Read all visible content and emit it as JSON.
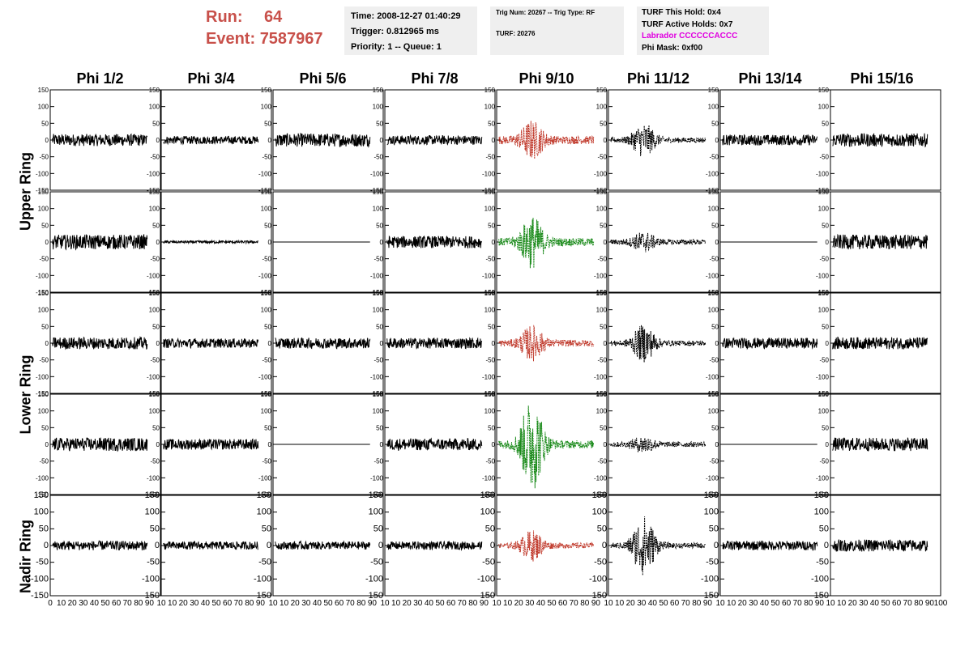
{
  "header": {
    "run_label": "Run:",
    "run_value": "64",
    "event_label": "Event:",
    "event_value": "7587967"
  },
  "info": {
    "time": "Time: 2008-12-27 01:40:29",
    "trigger": "Trigger: 0.812965 ms",
    "priority": "Priority: 1 -- Queue: 1",
    "trig_num": "Trig Num: 20267 -- Trig Type: RF",
    "turf": "TURF: 20276",
    "turf_hold": "TURF This Hold: 0x4",
    "turf_active": "TURF Active Holds: 0x7",
    "labrador": "Labrador CCCCCCACCC",
    "phi_mask": "Phi Mask: 0xf00"
  },
  "columns": [
    "Phi 1/2",
    "Phi 3/4",
    "Phi 5/6",
    "Phi 7/8",
    "Phi 9/10",
    "Phi 11/12",
    "Phi 13/14",
    "Phi 15/16"
  ],
  "rings": [
    "Upper Ring",
    "Lower Ring",
    "Nadir Ring"
  ],
  "colors": {
    "header_red": "#c8504a",
    "labrador_magenta": "#e000e0",
    "trace_black": "#000000",
    "trace_red": "#c0392b",
    "trace_green": "#1a8a1a",
    "info_bg": "#efefef"
  },
  "chart_data": {
    "type": "line",
    "title": "",
    "xlabel": "",
    "ylabel": "",
    "xlim": [
      0,
      100
    ],
    "ylim": [
      -150,
      150
    ],
    "y_ticks": [
      -150,
      -100,
      -50,
      0,
      50,
      100,
      150
    ],
    "x_ticks_bottom": [
      "0",
      "10",
      "20",
      "30",
      "40",
      "50",
      "60",
      "70",
      "80",
      "90",
      "10",
      "10",
      "20",
      "30",
      "40",
      "50",
      "60",
      "70",
      "80",
      "90",
      "10",
      "10",
      "20",
      "30",
      "40",
      "50",
      "60",
      "70",
      "80",
      "90",
      "10",
      "10",
      "20",
      "30",
      "40",
      "50",
      "60",
      "70",
      "80",
      "90",
      "10",
      "10",
      "20",
      "30",
      "40",
      "50",
      "60",
      "70",
      "80",
      "90",
      "10",
      "10",
      "20",
      "30",
      "40",
      "50",
      "60",
      "70",
      "80",
      "90",
      "10",
      "10",
      "20",
      "30",
      "40",
      "50",
      "60",
      "70",
      "80",
      "90",
      "10",
      "10",
      "20",
      "30",
      "40",
      "50",
      "60",
      "70",
      "80",
      "90",
      "100"
    ],
    "panels": [
      {
        "row": 0,
        "col": 0,
        "style": "noise",
        "amp": 18,
        "color": "black"
      },
      {
        "row": 0,
        "col": 1,
        "style": "noise",
        "amp": 12,
        "color": "black"
      },
      {
        "row": 0,
        "col": 2,
        "style": "noise",
        "amp": 20,
        "color": "black"
      },
      {
        "row": 0,
        "col": 3,
        "style": "noise",
        "amp": 14,
        "color": "black"
      },
      {
        "row": 0,
        "col": 4,
        "style": "burst",
        "amp": 12,
        "peak": 50,
        "color": "red",
        "dashed": true
      },
      {
        "row": 0,
        "col": 5,
        "style": "burst",
        "amp": 8,
        "peak": 45,
        "color": "black",
        "dashed": true
      },
      {
        "row": 0,
        "col": 6,
        "style": "noise",
        "amp": 16,
        "color": "black"
      },
      {
        "row": 0,
        "col": 7,
        "style": "noise",
        "amp": 20,
        "color": "black"
      },
      {
        "row": 1,
        "col": 0,
        "style": "noise",
        "amp": 22,
        "color": "black"
      },
      {
        "row": 1,
        "col": 1,
        "style": "noise",
        "amp": 4,
        "color": "black"
      },
      {
        "row": 1,
        "col": 2,
        "style": "flat",
        "amp": 0,
        "color": "black"
      },
      {
        "row": 1,
        "col": 3,
        "style": "noise",
        "amp": 18,
        "color": "black"
      },
      {
        "row": 1,
        "col": 4,
        "style": "burst",
        "amp": 12,
        "peak": 70,
        "color": "green",
        "dashed": true
      },
      {
        "row": 1,
        "col": 5,
        "style": "burst",
        "amp": 8,
        "peak": 25,
        "color": "black",
        "dashed": true
      },
      {
        "row": 1,
        "col": 6,
        "style": "flat",
        "amp": 0,
        "color": "black"
      },
      {
        "row": 1,
        "col": 7,
        "style": "noise",
        "amp": 22,
        "color": "black"
      },
      {
        "row": 2,
        "col": 0,
        "style": "noise",
        "amp": 18,
        "color": "black"
      },
      {
        "row": 2,
        "col": 1,
        "style": "noise",
        "amp": 14,
        "color": "black"
      },
      {
        "row": 2,
        "col": 2,
        "style": "noise",
        "amp": 16,
        "color": "black"
      },
      {
        "row": 2,
        "col": 3,
        "style": "noise",
        "amp": 16,
        "color": "black"
      },
      {
        "row": 2,
        "col": 4,
        "style": "burst",
        "amp": 10,
        "peak": 45,
        "color": "red",
        "dashed": true
      },
      {
        "row": 2,
        "col": 5,
        "style": "burst",
        "amp": 8,
        "peak": 50,
        "color": "black",
        "dashed": true
      },
      {
        "row": 2,
        "col": 6,
        "style": "noise",
        "amp": 16,
        "color": "black"
      },
      {
        "row": 2,
        "col": 7,
        "style": "noise",
        "amp": 18,
        "color": "black"
      },
      {
        "row": 3,
        "col": 0,
        "style": "noise",
        "amp": 20,
        "color": "black"
      },
      {
        "row": 3,
        "col": 1,
        "style": "noise",
        "amp": 16,
        "color": "black"
      },
      {
        "row": 3,
        "col": 2,
        "style": "flat",
        "amp": 0,
        "color": "black"
      },
      {
        "row": 3,
        "col": 3,
        "style": "noise",
        "amp": 18,
        "color": "black"
      },
      {
        "row": 3,
        "col": 4,
        "style": "burst",
        "amp": 12,
        "peak": 130,
        "color": "green",
        "dashed": true
      },
      {
        "row": 3,
        "col": 5,
        "style": "burst",
        "amp": 8,
        "peak": 20,
        "color": "black",
        "dashed": true
      },
      {
        "row": 3,
        "col": 6,
        "style": "flat",
        "amp": 0,
        "color": "black"
      },
      {
        "row": 3,
        "col": 7,
        "style": "noise",
        "amp": 20,
        "color": "black"
      },
      {
        "row": 4,
        "col": 0,
        "style": "noise",
        "amp": 14,
        "color": "black"
      },
      {
        "row": 4,
        "col": 1,
        "style": "noise",
        "amp": 12,
        "color": "black"
      },
      {
        "row": 4,
        "col": 2,
        "style": "noise",
        "amp": 12,
        "color": "black"
      },
      {
        "row": 4,
        "col": 3,
        "style": "noise",
        "amp": 12,
        "color": "black"
      },
      {
        "row": 4,
        "col": 4,
        "style": "burst",
        "amp": 8,
        "peak": 40,
        "color": "red",
        "dashed": true
      },
      {
        "row": 4,
        "col": 5,
        "style": "burst",
        "amp": 8,
        "peak": 85,
        "color": "black",
        "dashed": true
      },
      {
        "row": 4,
        "col": 6,
        "style": "noise",
        "amp": 14,
        "color": "black"
      },
      {
        "row": 4,
        "col": 7,
        "style": "noise",
        "amp": 18,
        "color": "black"
      }
    ]
  }
}
